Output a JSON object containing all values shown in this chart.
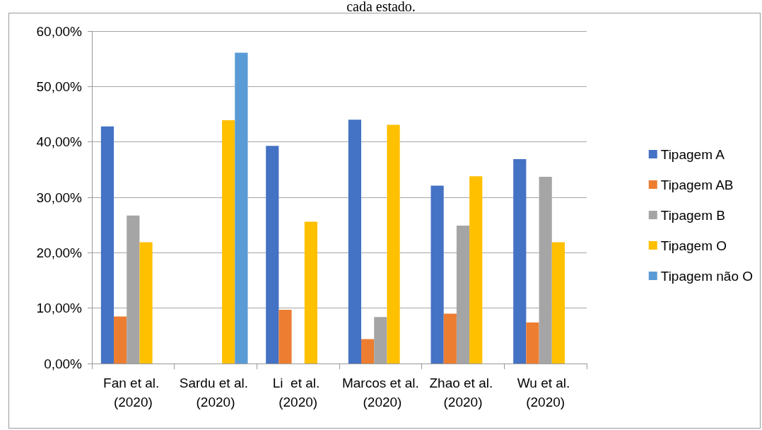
{
  "chart_data": {
    "type": "bar",
    "title": "cada estado.",
    "categories": [
      "Fan et al. (2020)",
      "Sardu et al. (2020)",
      "Li  et al. (2020)",
      "Marcos et al. (2020)",
      "Zhao et al. (2020)",
      "Wu et al. (2020)"
    ],
    "series": [
      {
        "name": "Tipagem A",
        "color": "#4472c4",
        "values": [
          42.8,
          null,
          39.3,
          44.0,
          32.1,
          36.9
        ]
      },
      {
        "name": "Tipagem AB",
        "color": "#ed7d31",
        "values": [
          8.5,
          null,
          9.7,
          4.4,
          9.0,
          7.4
        ]
      },
      {
        "name": "Tipagem B",
        "color": "#a5a5a5",
        "values": [
          26.7,
          null,
          null,
          8.4,
          24.9,
          33.7
        ]
      },
      {
        "name": "Tipagem O",
        "color": "#ffc000",
        "values": [
          21.9,
          43.9,
          25.6,
          43.1,
          33.8,
          21.9
        ]
      },
      {
        "name": "Tipagem não O",
        "color": "#5b9bd5",
        "values": [
          null,
          56.1,
          null,
          null,
          null,
          null
        ]
      }
    ],
    "ylim": [
      0,
      60
    ],
    "yticks": [
      {
        "value": 0,
        "label": "0,00%"
      },
      {
        "value": 10,
        "label": "10,00%"
      },
      {
        "value": 20,
        "label": "20,00%"
      },
      {
        "value": 30,
        "label": "30,00%"
      },
      {
        "value": 40,
        "label": "40,00%"
      },
      {
        "value": 50,
        "label": "50,00%"
      },
      {
        "value": 60,
        "label": "60,00%"
      }
    ],
    "grid": "y",
    "legend": "right"
  }
}
